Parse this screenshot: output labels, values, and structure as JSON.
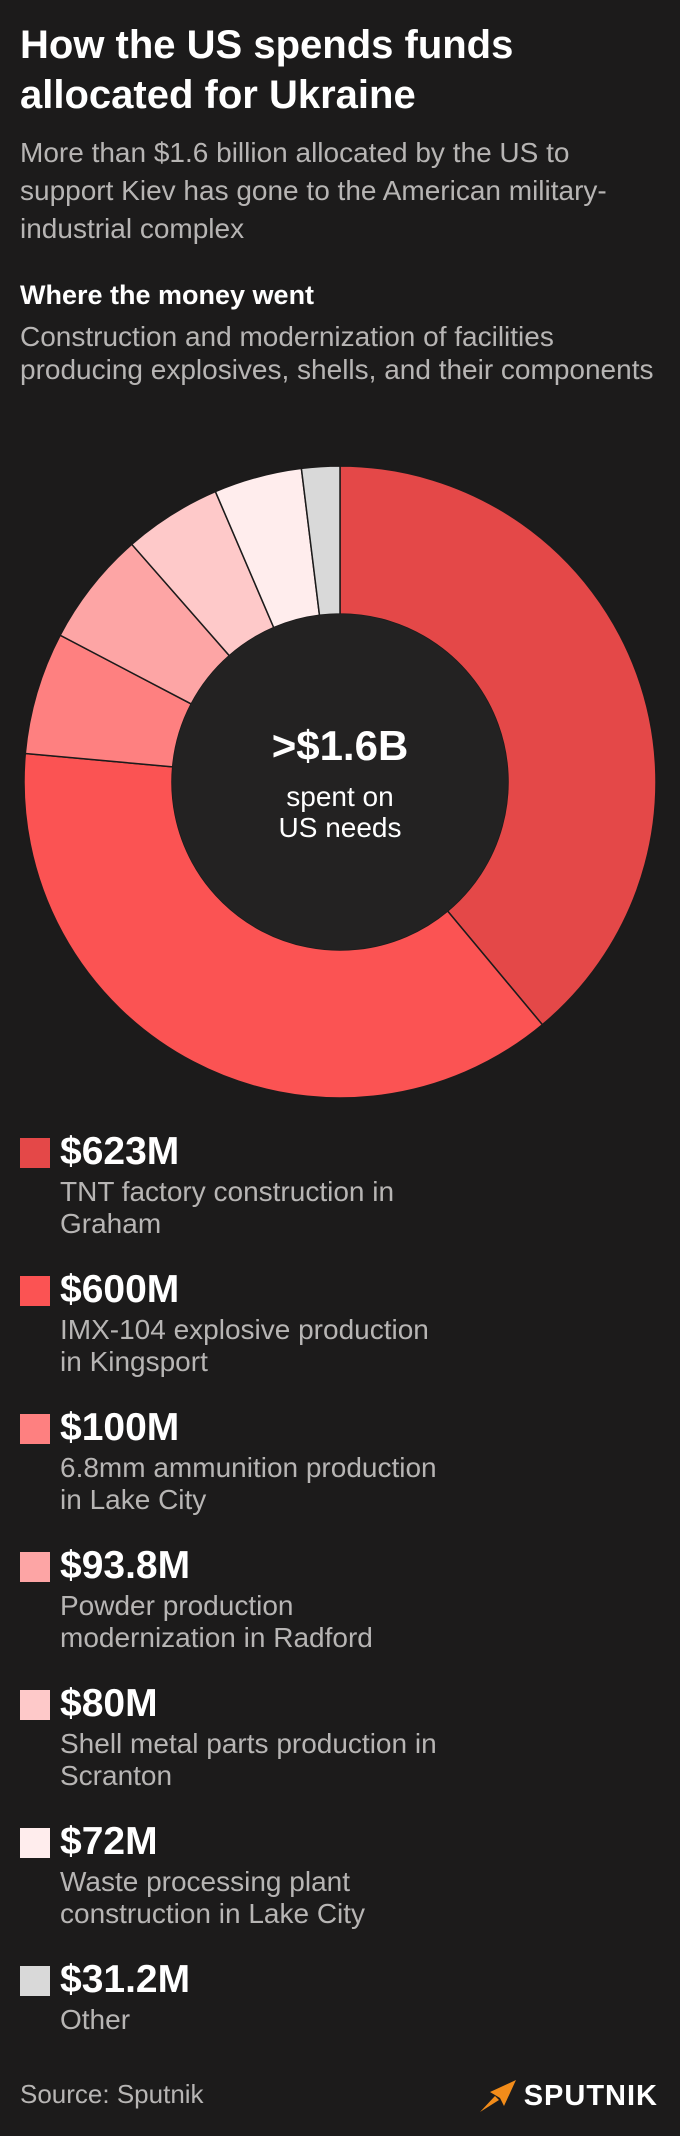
{
  "header": {
    "title": "How the US spends funds allocated for Ukraine",
    "subtitle": "More than $1.6 billion allocated by the US to support Kiev has gone to the American military-industrial complex"
  },
  "section": {
    "title": "Where the money went",
    "description": "Construction and modernization of facilities producing explosives, shells, and their components"
  },
  "center": {
    "value": ">$1.6B",
    "label": "spent on US needs"
  },
  "chart_data": {
    "type": "pie",
    "title": "Where the money went",
    "categories": [
      "TNT factory construction in Graham",
      "IMX-104 explosive production in Kingsport",
      "6.8mm ammunition production in Lake City",
      "Powder production modernization in Radford",
      "Shell metal parts production in Scranton",
      "Waste processing plant construction in Lake City",
      "Other"
    ],
    "values": [
      623,
      600,
      100,
      93.8,
      80,
      72,
      31.2
    ],
    "value_labels": [
      "$623M",
      "$600M",
      "$100M",
      "$93.8M",
      "$80M",
      "$72M",
      "$31.2M"
    ],
    "colors": [
      "#e44848",
      "#fb5353",
      "#fe8080",
      "#fda5a5",
      "#fec9c9",
      "#ffeded",
      "#d9d9d9"
    ],
    "center_label": ">$1.6B",
    "center_sublabel": "spent on US needs"
  },
  "legend": {
    "items": [
      {
        "value": "$623M",
        "label": "TNT factory construction in Graham",
        "color": "#e44848"
      },
      {
        "value": "$600M",
        "label": "IMX-104 explosive production in Kingsport",
        "color": "#fb5353"
      },
      {
        "value": "$100M",
        "label": "6.8mm ammunition production in Lake City",
        "color": "#fe8080"
      },
      {
        "value": "$93.8M",
        "label": "Powder production modernization in Radford",
        "color": "#fda5a5"
      },
      {
        "value": "$80M",
        "label": "Shell metal parts production in Scranton",
        "color": "#fec9c9"
      },
      {
        "value": "$72M",
        "label": "Waste processing plant construction in Lake City",
        "color": "#ffeded"
      },
      {
        "value": "$31.2M",
        "label": "Other",
        "color": "#d9d9d9"
      }
    ]
  },
  "footer": {
    "source": "Source: Sputnik",
    "brand": "SPUTNIK",
    "brand_icon": "sputnik-logo-icon"
  }
}
